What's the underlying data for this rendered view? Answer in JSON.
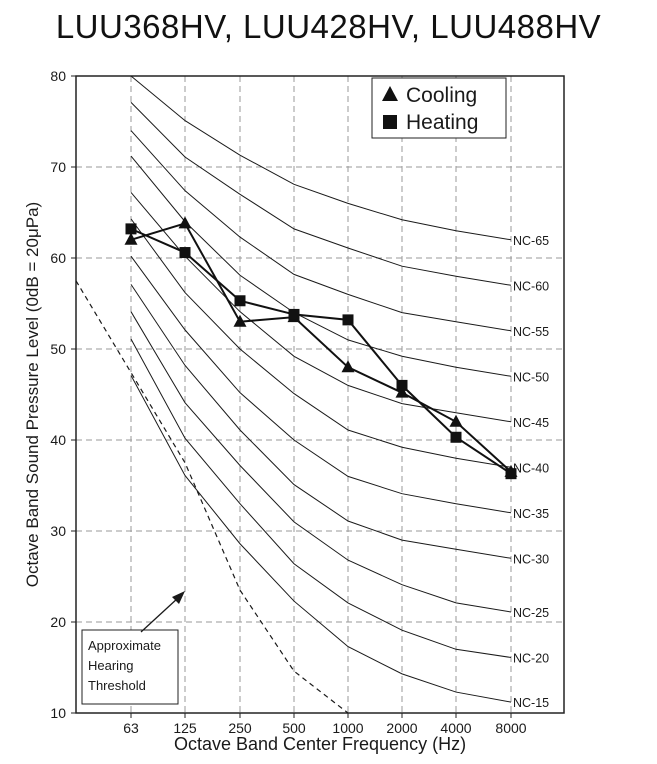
{
  "title": "LUU368HV, LUU428HV, LUU488HV",
  "chart_data": {
    "type": "line",
    "title": "LUU368HV, LUU428HV, LUU488HV",
    "xlabel": "Octave Band Center Frequency (Hz)",
    "ylabel": "Octave Band Sound Pressure Level (0dB = 20μPa)",
    "categories": [
      "63",
      "125",
      "250",
      "500",
      "1000",
      "2000",
      "4000",
      "8000"
    ],
    "ylim": [
      10,
      80
    ],
    "yticks": [
      "10",
      "20",
      "30",
      "40",
      "50",
      "60",
      "70",
      "80"
    ],
    "grid": "dashed vertical and horizontal",
    "legend_position": "top-right",
    "series": [
      {
        "name": "Cooling",
        "marker": "triangle",
        "values": [
          62,
          63.8,
          53,
          53.5,
          48,
          45.2,
          42,
          36.5
        ]
      },
      {
        "name": "Heating",
        "marker": "square",
        "values": [
          63.2,
          60.6,
          55.3,
          53.8,
          53.2,
          46,
          40.3,
          36.3
        ]
      }
    ],
    "nc_curves": [
      {
        "label": "NC-65",
        "values": [
          80,
          75.1,
          71.3,
          68.1,
          66,
          64.2,
          63,
          62
        ]
      },
      {
        "label": "NC-60",
        "values": [
          77.1,
          71.1,
          67,
          63.2,
          61.1,
          59.1,
          58,
          57
        ]
      },
      {
        "label": "NC-55",
        "values": [
          74,
          67.4,
          62.3,
          58.2,
          56,
          54,
          53,
          52
        ]
      },
      {
        "label": "NC-50",
        "values": [
          71.2,
          64,
          58.1,
          54,
          51,
          49.2,
          48,
          47
        ]
      },
      {
        "label": "NC-45",
        "values": [
          67.2,
          60.2,
          54.1,
          49.2,
          46,
          44,
          43,
          42
        ]
      },
      {
        "label": "NC-40",
        "values": [
          64.3,
          56.2,
          50,
          45.1,
          41.1,
          39.2,
          38,
          37
        ]
      },
      {
        "label": "NC-35",
        "values": [
          60.2,
          52.1,
          45.2,
          40,
          36,
          34.1,
          33,
          32
        ]
      },
      {
        "label": "NC-30",
        "values": [
          57.1,
          48.2,
          41.1,
          35.1,
          31.1,
          29,
          28,
          27
        ]
      },
      {
        "label": "NC-25",
        "values": [
          54.1,
          44.1,
          37.2,
          31,
          26.8,
          24.1,
          22.1,
          21.1
        ]
      },
      {
        "label": "NC-20",
        "values": [
          51.1,
          40.2,
          33,
          26.4,
          22.1,
          19.1,
          17,
          16.1
        ]
      },
      {
        "label": "NC-15",
        "values": [
          47.1,
          36.1,
          28.6,
          22.3,
          17.3,
          14.3,
          12.3,
          11.2
        ]
      }
    ],
    "hearing_threshold": {
      "annotation": "Approximate Hearing Threshold",
      "annotation_lines": [
        "Approximate",
        "Hearing",
        "Threshold"
      ],
      "values": [
        null,
        37.5,
        23.5,
        14.6,
        10
      ]
    }
  }
}
